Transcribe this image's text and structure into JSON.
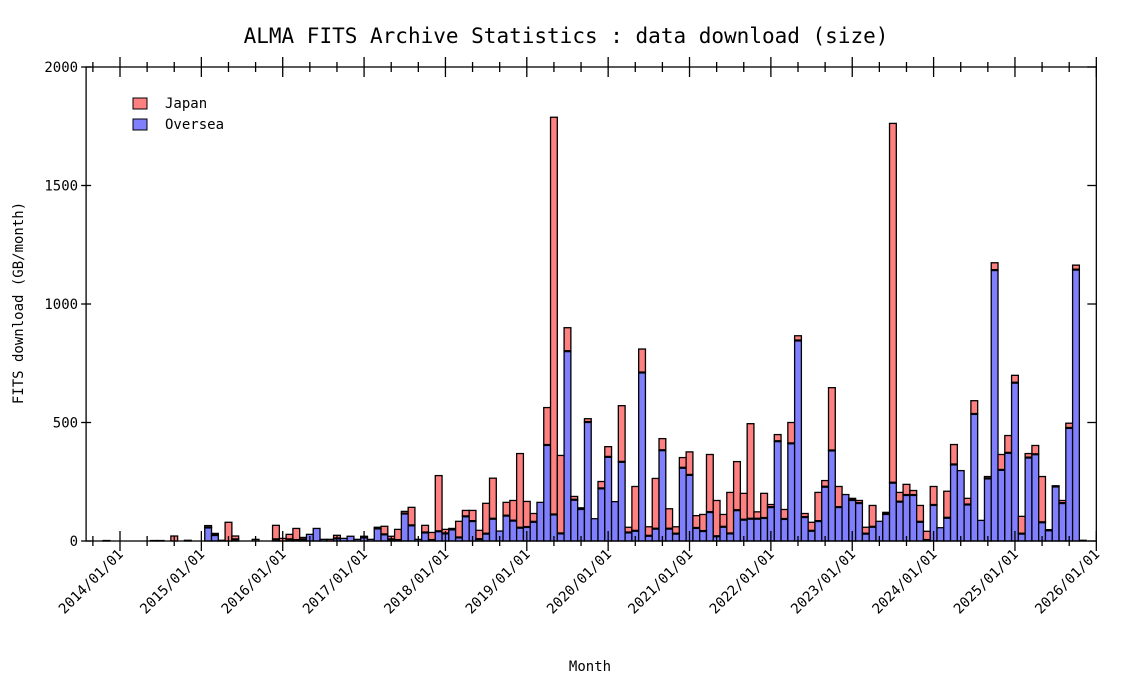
{
  "chart_data": {
    "type": "bar",
    "stacked": true,
    "title": "ALMA FITS Archive Statistics : data download (size)",
    "xlabel": "Month",
    "ylabel": "FITS download  (GB/month)",
    "ylim": [
      0,
      2000
    ],
    "xlim": [
      "2013/08",
      "2026/01"
    ],
    "yticks": [
      "0",
      "500",
      "1000",
      "1500",
      "2000"
    ],
    "xticks": [
      "2014/01/01",
      "2015/01/01",
      "2016/01/01",
      "2017/01/01",
      "2018/01/01",
      "2019/01/01",
      "2020/01/01",
      "2021/01/01",
      "2022/01/01",
      "2023/01/01",
      "2024/01/01",
      "2025/01/01",
      "2026/01/01"
    ],
    "legend_position": "top-left",
    "colors": {
      "Japan": "#ff8080",
      "Oversea": "#8080ff"
    },
    "x": [
      "2013/11",
      "2013/12",
      "2014/01",
      "2014/02",
      "2014/03",
      "2014/04",
      "2014/05",
      "2014/06",
      "2014/07",
      "2014/08",
      "2014/09",
      "2014/10",
      "2014/11",
      "2014/12",
      "2015/01",
      "2015/02",
      "2015/03",
      "2015/04",
      "2015/05",
      "2015/06",
      "2015/07",
      "2015/08",
      "2015/09",
      "2015/10",
      "2015/11",
      "2015/12",
      "2016/01",
      "2016/02",
      "2016/03",
      "2016/04",
      "2016/05",
      "2016/06",
      "2016/07",
      "2016/08",
      "2016/09",
      "2016/10",
      "2016/11",
      "2016/12",
      "2017/01",
      "2017/02",
      "2017/03",
      "2017/04",
      "2017/05",
      "2017/06",
      "2017/07",
      "2017/08",
      "2017/09",
      "2017/10",
      "2017/11",
      "2017/12",
      "2018/01",
      "2018/02",
      "2018/03",
      "2018/04",
      "2018/05",
      "2018/06",
      "2018/07",
      "2018/08",
      "2018/09",
      "2018/10",
      "2018/11",
      "2018/12",
      "2019/01",
      "2019/02",
      "2019/03",
      "2019/04",
      "2019/05",
      "2019/06",
      "2019/07",
      "2019/08",
      "2019/09",
      "2019/10",
      "2019/11",
      "2019/12",
      "2020/01",
      "2020/02",
      "2020/03",
      "2020/04",
      "2020/05",
      "2020/06",
      "2020/07",
      "2020/08",
      "2020/09",
      "2020/10",
      "2020/11",
      "2020/12",
      "2021/01",
      "2021/02",
      "2021/03",
      "2021/04",
      "2021/05",
      "2021/06",
      "2021/07",
      "2021/08",
      "2021/09",
      "2021/10",
      "2021/11",
      "2021/12",
      "2022/01",
      "2022/02",
      "2022/03",
      "2022/04",
      "2022/05",
      "2022/06",
      "2022/07",
      "2022/08",
      "2022/09",
      "2022/10",
      "2022/11",
      "2022/12",
      "2023/01",
      "2023/02",
      "2023/03",
      "2023/04",
      "2023/05",
      "2023/06",
      "2023/07",
      "2023/08",
      "2023/09",
      "2023/10",
      "2023/11",
      "2023/12",
      "2024/01",
      "2024/02",
      "2024/03",
      "2024/04",
      "2024/05",
      "2024/06",
      "2024/07",
      "2024/08",
      "2024/09",
      "2024/10",
      "2024/11",
      "2024/12",
      "2025/01",
      "2025/02",
      "2025/03",
      "2025/04",
      "2025/05",
      "2025/06",
      "2025/07",
      "2025/08",
      "2025/09",
      "2025/10",
      "2025/11"
    ],
    "series": [
      {
        "name": "Oversea",
        "values": [
          2,
          0,
          0,
          0,
          0,
          0,
          0,
          2,
          2,
          0,
          0,
          0,
          3,
          0,
          0,
          57,
          25,
          3,
          0,
          7,
          0,
          0,
          0,
          0,
          0,
          7,
          0,
          7,
          4,
          7,
          28,
          53,
          7,
          0,
          11,
          11,
          20,
          7,
          15,
          7,
          53,
          28,
          7,
          4,
          116,
          66,
          7,
          36,
          4,
          41,
          32,
          49,
          15,
          104,
          84,
          8,
          31,
          94,
          42,
          107,
          86,
          56,
          59,
          81,
          163,
          405,
          112,
          32,
          801,
          174,
          135,
          502,
          94,
          222,
          355,
          166,
          334,
          36,
          43,
          711,
          22,
          52,
          383,
          52,
          31,
          309,
          279,
          55,
          42,
          122,
          20,
          60,
          32,
          130,
          90,
          94,
          94,
          97,
          143,
          421,
          93,
          412,
          846,
          101,
          43,
          84,
          229,
          382,
          143,
          196,
          173,
          160,
          31,
          60,
          83,
          114,
          246,
          166,
          194,
          194,
          81,
          4,
          152,
          56,
          98,
          323,
          297,
          154,
          536,
          87,
          264,
          1143,
          300,
          372,
          668,
          31,
          352,
          366,
          79,
          45,
          230,
          160,
          477,
          1145,
          3
        ]
      },
      {
        "name": "Japan",
        "values": [
          0,
          0,
          0,
          0,
          0,
          0,
          0,
          0,
          0,
          0,
          21,
          0,
          0,
          0,
          0,
          8,
          7,
          0,
          79,
          14,
          0,
          0,
          7,
          0,
          0,
          59,
          11,
          21,
          49,
          8,
          0,
          0,
          0,
          7,
          13,
          0,
          0,
          0,
          5,
          0,
          5,
          34,
          13,
          45,
          9,
          76,
          0,
          30,
          32,
          235,
          17,
          4,
          68,
          25,
          45,
          37,
          128,
          171,
          0,
          56,
          85,
          313,
          108,
          35,
          0,
          158,
          1676,
          329,
          99,
          14,
          5,
          14,
          0,
          29,
          43,
          0,
          237,
          22,
          187,
          99,
          38,
          212,
          49,
          84,
          29,
          43,
          97,
          52,
          70,
          243,
          151,
          52,
          173,
          205,
          111,
          401,
          29,
          104,
          11,
          28,
          40,
          88,
          20,
          15,
          36,
          121,
          26,
          265,
          87,
          0,
          7,
          11,
          27,
          90,
          0,
          7,
          1516,
          39,
          45,
          19,
          69,
          37,
          78,
          0,
          112,
          84,
          0,
          26,
          56,
          0,
          8,
          31,
          65,
          73,
          31,
          73,
          17,
          37,
          193,
          3,
          3,
          11,
          20,
          19,
          0
        ]
      }
    ]
  }
}
